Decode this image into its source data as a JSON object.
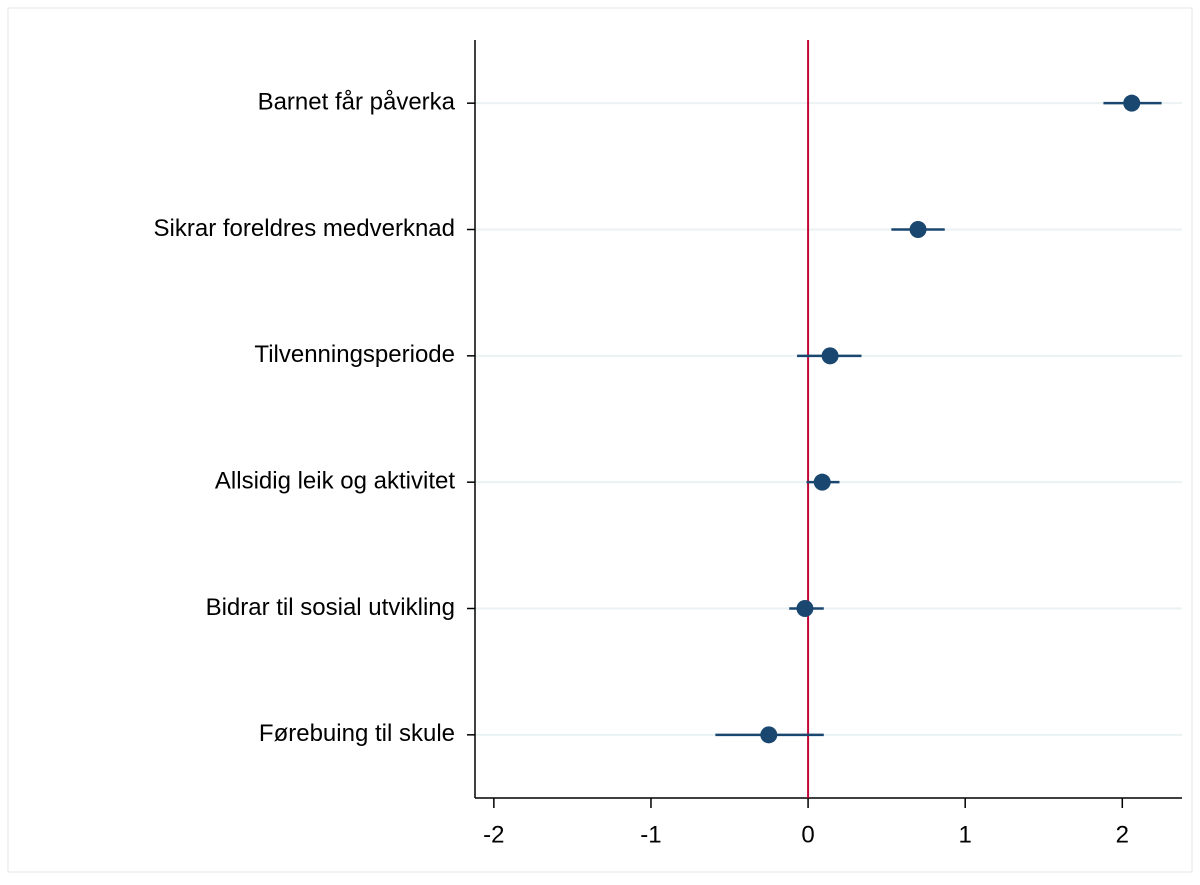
{
  "chart_data": {
    "type": "coefplot",
    "categories": [
      "Barnet får påverka",
      "Sikrar foreldres medverknad",
      "Tilvenningsperiode",
      "Allsidig leik og aktivitet",
      "Bidrar til sosial utvikling",
      "Førebuing til skule"
    ],
    "series": [
      {
        "color": "#1a476f",
        "values": [
          2.06,
          0.7,
          0.14,
          0.09,
          -0.02,
          -0.25
        ],
        "lower": [
          1.88,
          0.53,
          -0.07,
          -0.01,
          -0.12,
          -0.59
        ],
        "upper": [
          2.25,
          0.87,
          0.34,
          0.2,
          0.1,
          0.1
        ]
      }
    ],
    "xlim": [
      -2.12,
      2.38
    ],
    "xticks": [
      -2,
      -1,
      0,
      1,
      2
    ],
    "refline": 0,
    "refline_color": "#c10534",
    "grid": true
  }
}
